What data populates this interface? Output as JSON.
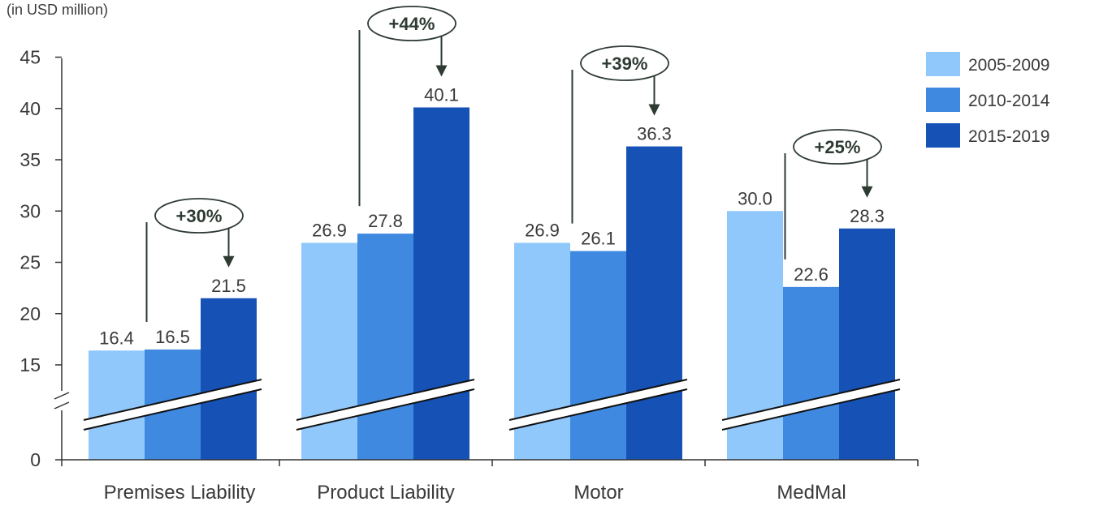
{
  "chart_data": {
    "type": "bar",
    "unit_label": "(in USD million)",
    "categories": [
      "Premises Liability",
      "Product Liability",
      "Motor",
      "MedMal"
    ],
    "series": [
      {
        "name": "2005-2009",
        "color": "#90c8fb",
        "values": [
          16.4,
          26.9,
          26.9,
          30.0
        ]
      },
      {
        "name": "2010-2014",
        "color": "#3f8ae0",
        "values": [
          16.5,
          27.8,
          26.1,
          22.6
        ]
      },
      {
        "name": "2015-2019",
        "color": "#1652b5",
        "values": [
          21.5,
          40.1,
          36.3,
          28.3
        ]
      }
    ],
    "value_labels": [
      [
        "16.4",
        "16.5",
        "21.5"
      ],
      [
        "26.9",
        "27.8",
        "40.1"
      ],
      [
        "26.9",
        "26.1",
        "36.3"
      ],
      [
        "30.0",
        "22.6",
        "28.3"
      ]
    ],
    "change_badges": [
      "+30%",
      "+44%",
      "+39%",
      "+25%"
    ],
    "y_ticks": [
      0,
      15,
      20,
      25,
      30,
      35,
      40,
      45
    ],
    "ylim": [
      0,
      45
    ],
    "axis_break": true,
    "legend_position": "top-right",
    "grid": false,
    "title": "",
    "xlabel": "",
    "ylabel": ""
  }
}
